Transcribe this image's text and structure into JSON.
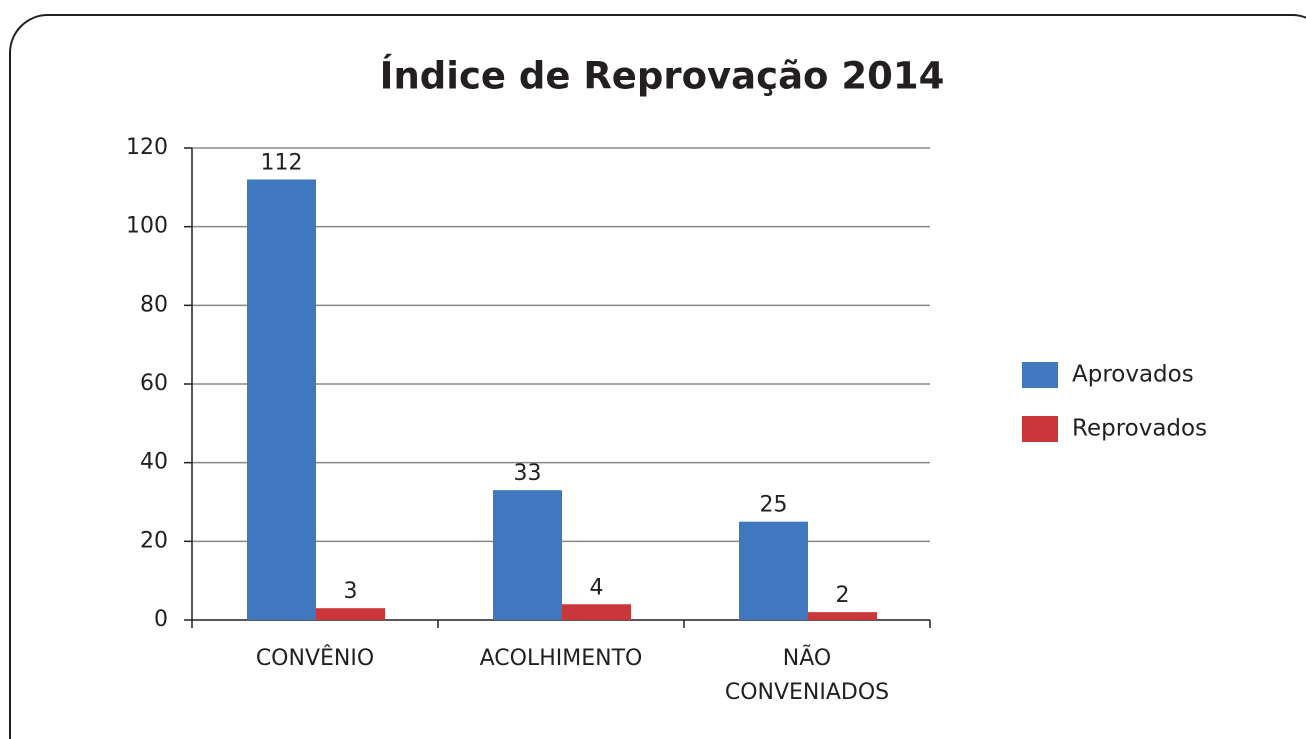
{
  "chart_data": {
    "type": "bar",
    "title": "Índice de Reprovação 2014",
    "categories": [
      "CONVÊNIO",
      "ACOLHIMENTO",
      "NÃO CONVENIADOS"
    ],
    "series": [
      {
        "name": "Aprovados",
        "color": "#3f78be",
        "values": [
          112,
          33,
          25
        ]
      },
      {
        "name": "Reprovados",
        "color": "#c9373a",
        "values": [
          3,
          4,
          2
        ]
      }
    ],
    "ylim": [
      0,
      120
    ],
    "yticks": [
      0,
      20,
      40,
      60,
      80,
      100,
      120
    ],
    "grid": true,
    "legend": "right"
  }
}
